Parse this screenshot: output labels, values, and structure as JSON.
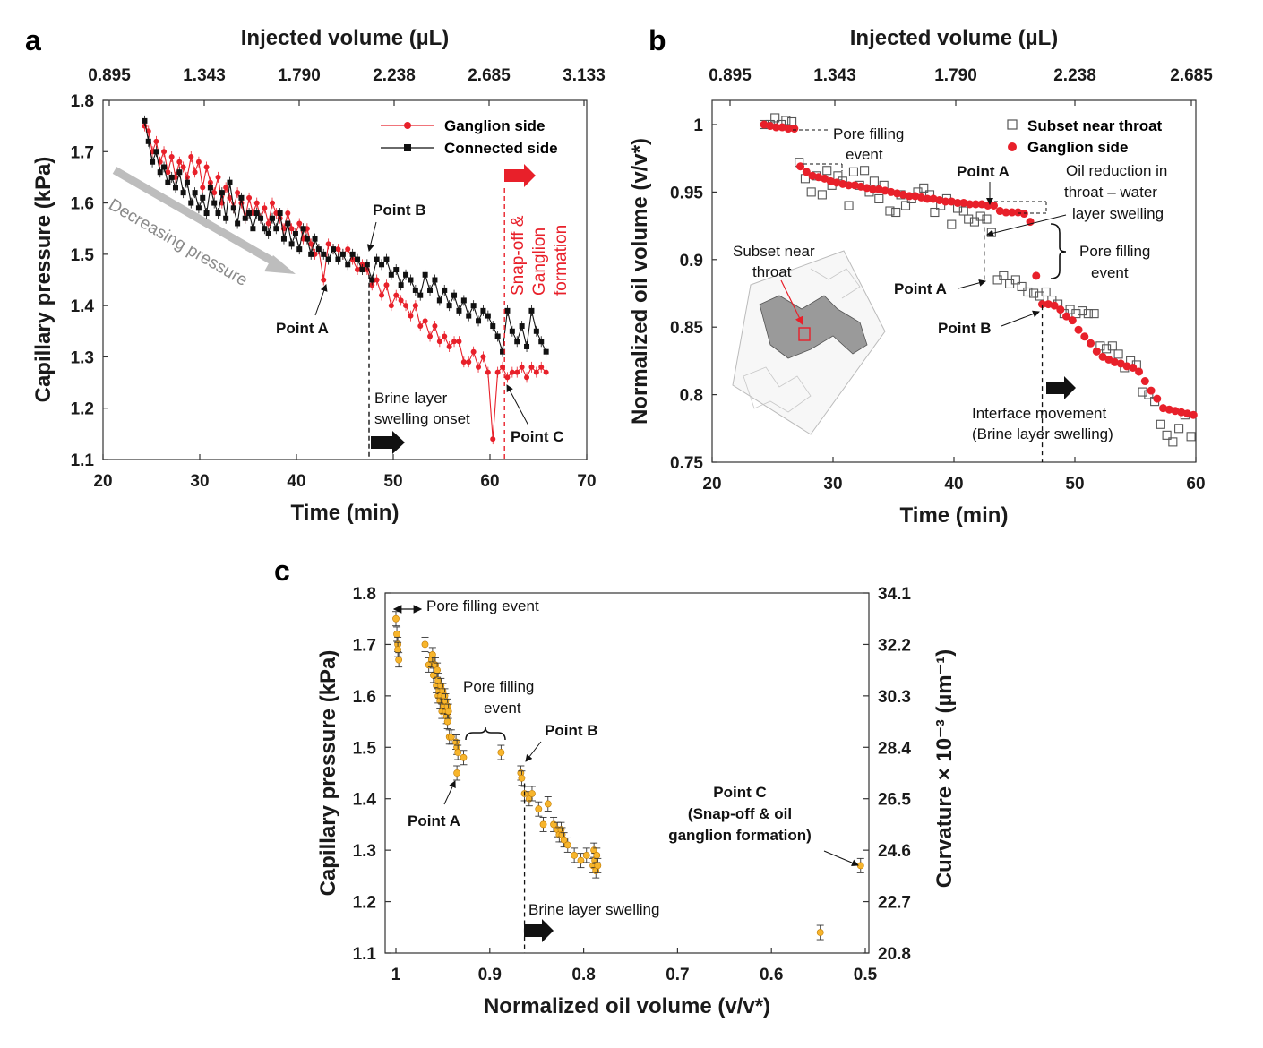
{
  "colors": {
    "ganglion": "#e8202a",
    "connected": "#111111",
    "subset": "#555555",
    "panel_c_fill": "#f7b52c",
    "arrow_grey": "#bdbdbd"
  },
  "chart_data": [
    {
      "panel": "a",
      "type": "line",
      "xlabel": "Time (min)",
      "ylabel": "Capillary pressure (kPa)",
      "top_axis_label": "Injected volume (µL)",
      "xlim": [
        20,
        70
      ],
      "ylim": [
        1.1,
        1.8
      ],
      "xticks": [
        "20",
        "30",
        "40",
        "50",
        "60",
        "70"
      ],
      "yticks": [
        "1.1",
        "1.2",
        "1.3",
        "1.4",
        "1.5",
        "1.6",
        "1.7",
        "1.8"
      ],
      "top_ticks": [
        "0.895",
        "1.343",
        "1.790",
        "2.238",
        "2.685",
        "3.133"
      ],
      "legend": [
        "Ganglion side",
        "Connected side"
      ],
      "series": [
        {
          "name": "Ganglion side",
          "color": "#e8202a",
          "x": [
            24.3,
            24.7,
            25.1,
            25.5,
            25.9,
            26.3,
            26.7,
            27.1,
            27.5,
            27.9,
            28.3,
            28.7,
            29.1,
            29.5,
            29.9,
            30.3,
            30.7,
            31.1,
            31.5,
            31.9,
            32.3,
            32.7,
            33.1,
            33.5,
            33.9,
            34.3,
            34.7,
            35.1,
            35.5,
            35.9,
            36.3,
            36.7,
            37.1,
            37.5,
            37.9,
            38.3,
            38.7,
            39.1,
            39.5,
            39.9,
            40.3,
            40.7,
            41.1,
            41.5,
            41.9,
            42.3,
            42.8,
            43.3,
            43.8,
            44.3,
            44.8,
            45.3,
            45.8,
            46.3,
            46.8,
            47.3,
            47.8,
            48.3,
            48.8,
            49.3,
            49.8,
            50.3,
            50.8,
            51.3,
            51.8,
            52.3,
            52.8,
            53.3,
            53.8,
            54.3,
            54.8,
            55.3,
            55.8,
            56.3,
            56.8,
            57.3,
            57.8,
            58.3,
            58.8,
            59.3,
            59.8,
            60.3,
            60.8,
            61.3,
            61.8,
            62.3,
            62.8,
            63.3,
            63.8,
            64.3,
            64.8,
            65.3,
            65.8
          ],
          "y": [
            1.75,
            1.74,
            1.7,
            1.72,
            1.68,
            1.7,
            1.66,
            1.69,
            1.65,
            1.68,
            1.67,
            1.65,
            1.69,
            1.66,
            1.68,
            1.63,
            1.67,
            1.64,
            1.62,
            1.65,
            1.6,
            1.63,
            1.61,
            1.59,
            1.62,
            1.6,
            1.57,
            1.61,
            1.58,
            1.6,
            1.57,
            1.59,
            1.56,
            1.6,
            1.58,
            1.57,
            1.55,
            1.58,
            1.55,
            1.54,
            1.56,
            1.53,
            1.55,
            1.52,
            1.5,
            1.51,
            1.45,
            1.52,
            1.51,
            1.51,
            1.5,
            1.51,
            1.49,
            1.47,
            1.48,
            1.47,
            1.44,
            1.45,
            1.42,
            1.44,
            1.4,
            1.42,
            1.41,
            1.4,
            1.38,
            1.4,
            1.36,
            1.37,
            1.34,
            1.36,
            1.33,
            1.34,
            1.32,
            1.33,
            1.33,
            1.29,
            1.29,
            1.31,
            1.28,
            1.3,
            1.27,
            1.14,
            1.27,
            1.28,
            1.26,
            1.27,
            1.27,
            1.28,
            1.26,
            1.28,
            1.27,
            1.28,
            1.27
          ]
        },
        {
          "name": "Connected side",
          "color": "#111111",
          "x": [
            24.3,
            24.7,
            25.1,
            25.5,
            25.9,
            26.3,
            26.7,
            27.1,
            27.5,
            27.9,
            28.3,
            28.7,
            29.1,
            29.5,
            29.9,
            30.3,
            30.7,
            31.1,
            31.5,
            31.9,
            32.3,
            32.7,
            33.1,
            33.5,
            33.9,
            34.3,
            34.7,
            35.1,
            35.5,
            35.9,
            36.3,
            36.7,
            37.1,
            37.5,
            37.9,
            38.3,
            38.7,
            39.1,
            39.5,
            39.9,
            40.3,
            40.7,
            41.1,
            41.5,
            41.9,
            42.3,
            42.8,
            43.3,
            43.8,
            44.3,
            44.8,
            45.3,
            45.8,
            46.3,
            46.8,
            47.3,
            47.8,
            48.3,
            48.8,
            49.3,
            49.8,
            50.3,
            50.8,
            51.3,
            51.8,
            52.3,
            52.8,
            53.3,
            53.8,
            54.3,
            54.8,
            55.3,
            55.8,
            56.3,
            56.8,
            57.3,
            57.8,
            58.3,
            58.8,
            59.3,
            59.8,
            60.3,
            60.8,
            61.3,
            61.8,
            62.3,
            62.8,
            63.3,
            63.8,
            64.3,
            64.8,
            65.3,
            65.8
          ],
          "y": [
            1.76,
            1.72,
            1.68,
            1.7,
            1.66,
            1.67,
            1.64,
            1.65,
            1.63,
            1.66,
            1.62,
            1.64,
            1.6,
            1.62,
            1.59,
            1.61,
            1.58,
            1.63,
            1.6,
            1.58,
            1.62,
            1.57,
            1.64,
            1.59,
            1.56,
            1.61,
            1.57,
            1.58,
            1.55,
            1.58,
            1.57,
            1.55,
            1.54,
            1.57,
            1.55,
            1.58,
            1.53,
            1.56,
            1.52,
            1.54,
            1.51,
            1.55,
            1.53,
            1.5,
            1.53,
            1.51,
            1.5,
            1.49,
            1.51,
            1.49,
            1.5,
            1.48,
            1.5,
            1.49,
            1.47,
            1.48,
            1.45,
            1.49,
            1.48,
            1.49,
            1.46,
            1.47,
            1.44,
            1.46,
            1.45,
            1.43,
            1.42,
            1.46,
            1.43,
            1.45,
            1.41,
            1.43,
            1.4,
            1.42,
            1.39,
            1.41,
            1.38,
            1.4,
            1.37,
            1.39,
            1.38,
            1.36,
            1.34,
            1.31,
            1.39,
            1.35,
            1.33,
            1.36,
            1.32,
            1.39,
            1.35,
            1.33,
            1.31
          ]
        }
      ],
      "annotations": {
        "point_a": "Point A",
        "point_b": "Point B",
        "point_c": "Point C",
        "decreasing": "Decreasing pressure",
        "brine_1": "Brine layer",
        "brine_2": "swelling onset",
        "snap_1": "Snap-off  &",
        "snap_2": "Ganglion",
        "snap_3": "formation",
        "brine_onset_x": 47.5,
        "snapoff_x": 61.5
      }
    },
    {
      "panel": "b",
      "type": "scatter",
      "xlabel": "Time (min)",
      "ylabel": "Normalized oil volume (v/v*)",
      "top_axis_label": "Injected volume (µL)",
      "xlim": [
        20,
        60
      ],
      "ylim": [
        0.75,
        1.02
      ],
      "xticks": [
        "20",
        "30",
        "40",
        "50",
        "60"
      ],
      "yticks": [
        "0.75",
        "0.8",
        "0.85",
        "0.9",
        "0.95",
        "1"
      ],
      "top_ticks": [
        "0.895",
        "1.343",
        "1.790",
        "2.238",
        "2.685"
      ],
      "legend": [
        "Subset near throat",
        "Ganglion side"
      ],
      "series": [
        {
          "name": "Subset near throat",
          "marker": "open-square",
          "x": [
            24.3,
            24.8,
            25.2,
            25.7,
            26.1,
            26.6,
            27.2,
            27.7,
            28.2,
            28.6,
            29.1,
            29.5,
            29.9,
            30.4,
            30.8,
            31.3,
            31.7,
            32.2,
            32.6,
            33.0,
            33.4,
            33.8,
            34.2,
            34.7,
            35.2,
            35.6,
            36.0,
            36.5,
            37.0,
            37.5,
            38.0,
            38.4,
            38.9,
            39.4,
            39.8,
            40.3,
            40.8,
            41.2,
            41.7,
            42.2,
            42.7,
            43.1,
            43.6,
            44.1,
            44.6,
            45.1,
            45.6,
            46.1,
            46.6,
            47.1,
            47.6,
            48.1,
            48.6,
            49.1,
            49.6,
            50.1,
            50.6,
            51.1,
            51.6,
            52.1,
            52.6,
            53.1,
            53.6,
            54.1,
            54.6,
            55.1,
            55.6,
            56.1,
            56.6,
            57.1,
            57.6,
            58.1,
            58.6,
            59.1,
            59.6
          ],
          "y": [
            1.0,
            1.0,
            1.005,
            1.0,
            1.003,
            1.002,
            0.972,
            0.96,
            0.95,
            0.962,
            0.948,
            0.966,
            0.955,
            0.962,
            0.958,
            0.94,
            0.965,
            0.955,
            0.966,
            0.95,
            0.958,
            0.945,
            0.955,
            0.936,
            0.935,
            0.948,
            0.94,
            0.945,
            0.95,
            0.953,
            0.948,
            0.935,
            0.94,
            0.945,
            0.926,
            0.938,
            0.936,
            0.93,
            0.928,
            0.932,
            0.93,
            0.92,
            0.885,
            0.888,
            0.882,
            0.885,
            0.88,
            0.876,
            0.875,
            0.873,
            0.876,
            0.87,
            0.867,
            0.86,
            0.863,
            0.86,
            0.862,
            0.86,
            0.86,
            0.836,
            0.834,
            0.836,
            0.83,
            0.82,
            0.825,
            0.822,
            0.802,
            0.8,
            0.795,
            0.778,
            0.77,
            0.765,
            0.775,
            0.785,
            0.769
          ]
        },
        {
          "name": "Ganglion side",
          "marker": "filled-circle",
          "x": [
            24.3,
            24.8,
            25.3,
            25.8,
            26.3,
            26.8,
            27.3,
            27.8,
            28.3,
            28.8,
            29.3,
            29.8,
            30.3,
            30.8,
            31.3,
            31.8,
            32.3,
            32.8,
            33.3,
            33.8,
            34.3,
            34.8,
            35.3,
            35.8,
            36.3,
            36.8,
            37.3,
            37.8,
            38.3,
            38.8,
            39.3,
            39.8,
            40.3,
            40.8,
            41.3,
            41.8,
            42.3,
            42.8,
            43.3,
            43.8,
            44.3,
            44.8,
            45.3,
            45.8,
            46.3,
            46.8,
            47.3,
            47.8,
            48.3,
            48.8,
            49.3,
            49.8,
            50.3,
            50.8,
            51.3,
            51.8,
            52.3,
            52.8,
            53.3,
            53.8,
            54.3,
            54.8,
            55.3,
            55.8,
            56.3,
            56.8,
            57.3,
            57.8,
            58.3,
            58.8,
            59.3,
            59.8
          ],
          "y": [
            1.0,
            0.999,
            0.998,
            0.998,
            0.997,
            0.997,
            0.969,
            0.965,
            0.962,
            0.961,
            0.96,
            0.958,
            0.957,
            0.956,
            0.955,
            0.955,
            0.954,
            0.953,
            0.952,
            0.952,
            0.951,
            0.95,
            0.949,
            0.948,
            0.947,
            0.947,
            0.946,
            0.945,
            0.945,
            0.944,
            0.943,
            0.943,
            0.942,
            0.942,
            0.941,
            0.941,
            0.941,
            0.94,
            0.94,
            0.936,
            0.935,
            0.935,
            0.935,
            0.934,
            0.928,
            0.888,
            0.867,
            0.867,
            0.866,
            0.863,
            0.858,
            0.855,
            0.848,
            0.843,
            0.838,
            0.832,
            0.828,
            0.826,
            0.824,
            0.823,
            0.821,
            0.82,
            0.817,
            0.81,
            0.803,
            0.797,
            0.79,
            0.789,
            0.788,
            0.787,
            0.786,
            0.785
          ]
        }
      ],
      "annotations": {
        "pore_filling_1": "Pore filling",
        "pore_filling_2": "event",
        "point_a_top": "Point A",
        "oil_red_1": "Oil reduction in",
        "oil_red_2": "throat – water",
        "oil_red_3": "layer swelling",
        "pore_filling_r1": "Pore filling",
        "pore_filling_r2": "event",
        "point_a_left": "Point A",
        "point_b": "Point B",
        "subset_1": "Subset near",
        "subset_2": "throat",
        "interface_1": "Interface movement",
        "interface_2": "(Brine layer swelling)",
        "point_a_x": 42.5,
        "brine_x": 47.3
      }
    },
    {
      "panel": "c",
      "type": "scatter",
      "xlabel": "Normalized oil volume (v/v*)",
      "ylabel": "Capillary pressure (kPa)",
      "y2label": "Curvature × 10⁻³ (µm⁻¹)",
      "xlim": [
        1.0,
        0.5
      ],
      "ylim": [
        1.1,
        1.8
      ],
      "xticks": [
        "1",
        "0.9",
        "0.8",
        "0.7",
        "0.6",
        "0.5"
      ],
      "yticks": [
        "1.1",
        "1.2",
        "1.3",
        "1.4",
        "1.5",
        "1.6",
        "1.7",
        "1.8"
      ],
      "y2ticks": [
        "20.8",
        "22.7",
        "24.6",
        "26.5",
        "28.4",
        "30.3",
        "32.2",
        "34.1"
      ],
      "series": [
        {
          "name": "",
          "marker": "filled-circle",
          "x": [
            1.0,
            0.999,
            0.998,
            0.998,
            0.997,
            0.969,
            0.965,
            0.962,
            0.961,
            0.96,
            0.958,
            0.957,
            0.956,
            0.955,
            0.955,
            0.954,
            0.953,
            0.952,
            0.952,
            0.951,
            0.95,
            0.949,
            0.948,
            0.947,
            0.947,
            0.946,
            0.945,
            0.945,
            0.944,
            0.943,
            0.941,
            0.936,
            0.935,
            0.935,
            0.934,
            0.928,
            0.888,
            0.867,
            0.866,
            0.863,
            0.858,
            0.855,
            0.848,
            0.843,
            0.838,
            0.832,
            0.828,
            0.826,
            0.824,
            0.823,
            0.821,
            0.817,
            0.81,
            0.803,
            0.797,
            0.79,
            0.789,
            0.788,
            0.787,
            0.786,
            0.785,
            0.548,
            0.505
          ],
          "y": [
            1.75,
            1.72,
            1.7,
            1.69,
            1.67,
            1.7,
            1.66,
            1.67,
            1.68,
            1.64,
            1.66,
            1.62,
            1.65,
            1.6,
            1.63,
            1.61,
            1.59,
            1.62,
            1.6,
            1.57,
            1.61,
            1.58,
            1.6,
            1.57,
            1.59,
            1.56,
            1.58,
            1.55,
            1.57,
            1.52,
            1.52,
            1.51,
            1.45,
            1.5,
            1.49,
            1.48,
            1.49,
            1.45,
            1.44,
            1.41,
            1.4,
            1.41,
            1.38,
            1.35,
            1.39,
            1.35,
            1.34,
            1.33,
            1.34,
            1.33,
            1.32,
            1.31,
            1.29,
            1.28,
            1.29,
            1.27,
            1.3,
            1.28,
            1.26,
            1.29,
            1.27,
            1.14,
            1.27
          ]
        }
      ],
      "annotations": {
        "pore_filling_top": "Pore filling event",
        "pore_filling_1": "Pore filling",
        "pore_filling_2": "event",
        "point_a": "Point A",
        "point_b": "Point B",
        "point_c_1": "Point C",
        "point_c_2": "(Snap-off & oil",
        "point_c_3": "ganglion formation)",
        "brine": "Brine layer swelling",
        "brine_x": 0.863
      }
    }
  ],
  "panel_letters": {
    "a": "a",
    "b": "b",
    "c": "c"
  }
}
